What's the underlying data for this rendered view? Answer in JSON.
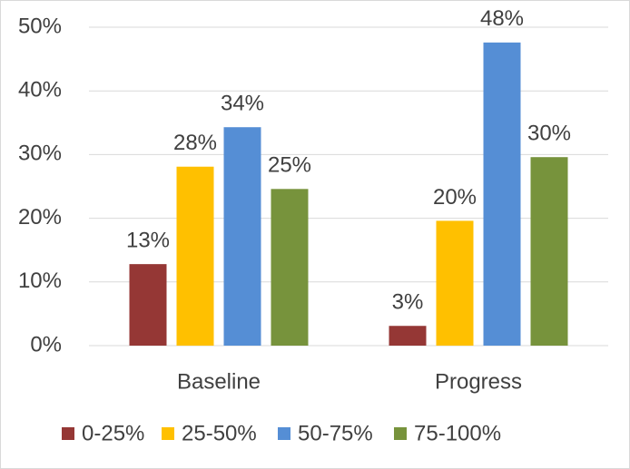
{
  "chart_data": {
    "type": "bar",
    "categories": [
      "Baseline",
      "Progress"
    ],
    "series": [
      {
        "name": "0-25%",
        "color": "#953735",
        "values": [
          12.8,
          3.1
        ],
        "value_labels": [
          "13%",
          "3%"
        ]
      },
      {
        "name": "25-50%",
        "color": "#ffc000",
        "values": [
          28.1,
          19.6
        ],
        "value_labels": [
          "28%",
          "20%"
        ]
      },
      {
        "name": "50-75%",
        "color": "#558ed5",
        "values": [
          34.3,
          47.6
        ],
        "value_labels": [
          "34%",
          "48%"
        ]
      },
      {
        "name": "75-100%",
        "color": "#77933c",
        "values": [
          24.6,
          29.6
        ],
        "value_labels": [
          "25%",
          "30%"
        ]
      }
    ],
    "ylim": [
      0,
      50
    ],
    "yticks": [
      {
        "value": 0,
        "label": "0%"
      },
      {
        "value": 10,
        "label": "10%"
      },
      {
        "value": 20,
        "label": "20%"
      },
      {
        "value": 30,
        "label": "30%"
      },
      {
        "value": 40,
        "label": "40%"
      },
      {
        "value": 50,
        "label": "50%"
      }
    ],
    "grid": true,
    "legend": "bottom"
  }
}
